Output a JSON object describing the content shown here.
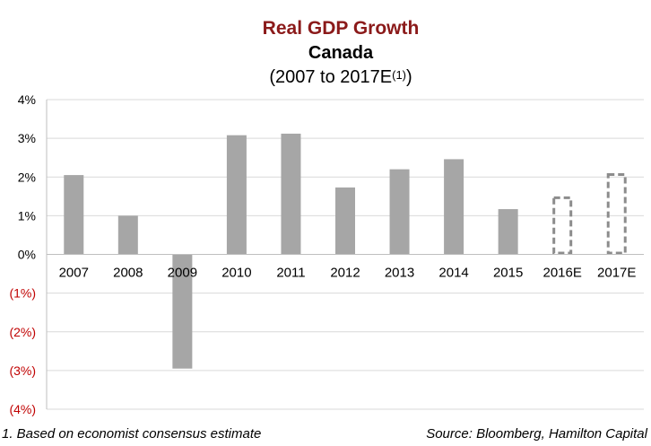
{
  "title": {
    "main": "Real GDP Growth",
    "sub": "Canada",
    "range": "(2007 to 2017E",
    "range_sup": "(1)",
    "range_close": ")"
  },
  "colors": {
    "title": "#8b1a1a",
    "bar": "#a6a6a6",
    "negative_label": "#c00000",
    "grid": "#d9d9d9",
    "estimate_outline": "#8c8c8c"
  },
  "footer": {
    "footnote": "1. Based on economist consensus estimate",
    "source": "Source: Bloomberg, Hamilton Capital"
  },
  "chart_data": {
    "type": "bar",
    "title": "Real GDP Growth",
    "categories": [
      "2007",
      "2008",
      "2009",
      "2010",
      "2011",
      "2012",
      "2013",
      "2014",
      "2015",
      "2016E",
      "2017E"
    ],
    "values": [
      2.05,
      1.0,
      -2.95,
      3.08,
      3.12,
      1.73,
      2.2,
      2.46,
      1.17,
      1.5,
      2.1
    ],
    "estimate": [
      false,
      false,
      false,
      false,
      false,
      false,
      false,
      false,
      false,
      true,
      true
    ],
    "ylim": [
      -4,
      4
    ],
    "yticks": [
      4,
      3,
      2,
      1,
      0,
      -1,
      -2,
      -3,
      -4
    ],
    "ytick_labels": [
      "4%",
      "3%",
      "2%",
      "1%",
      "0%",
      "(1%)",
      "(2%)",
      "(3%)",
      "(4%)"
    ],
    "grid": true,
    "xlabel": "",
    "ylabel": ""
  }
}
